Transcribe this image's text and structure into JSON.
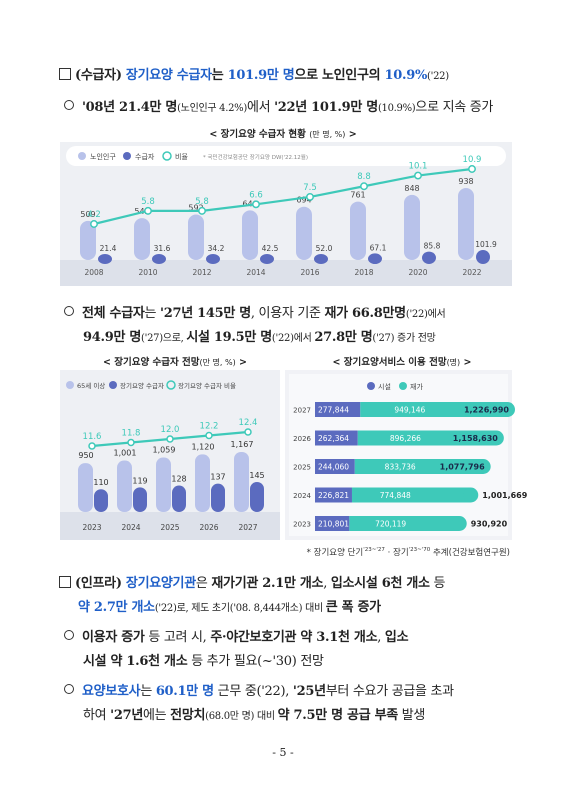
{
  "s1": {
    "a": "(수급자) ",
    "b": "장기요양 수급자",
    "c": "는 ",
    "d": "101.9만 명",
    "e": "으로 ",
    "f": "노인인구",
    "g": "의 ",
    "h": "10.9%",
    "i": "('22)"
  },
  "s1b": {
    "a": "'08년 21.4만 명",
    "b": "(노인인구 4.2%)",
    "c": "에서 ",
    "d": "'22년 101.9만 명",
    "e": "(10.9%)",
    "f": "으로 지속 증가"
  },
  "cap1": {
    "main": "< 장기요양 수급자 현황 ",
    "unit": "(만 명, %)",
    "end": " >"
  },
  "chart1": {
    "legend": [
      "노인인구",
      "수급자",
      "비율"
    ],
    "note": "* 국민건강보험공단 장기요양 DW('22.12월)",
    "colors": {
      "pop": "#b8c2ea",
      "rec": "#5b6bbf",
      "ratio": "#3ec9b9"
    }
  },
  "s2": {
    "l1a": "전체 수급자",
    "l1b": "는 ",
    "l1c": "'27년 145만 명",
    "l1d": ", 이용자 기준 ",
    "l1e": "재가 66.8만명",
    "l1f": "('22)에서",
    "l2a": "94.9만 명",
    "l2b": "('27)으로, ",
    "l2c": "시설 19.5만 명",
    "l2d": "('22)에서 ",
    "l2e": "27.8만 명",
    "l2f": "('27) 증가 전망"
  },
  "cap2": {
    "main": "< 장기요양 수급자 전망",
    "unit": "(만 명, %)",
    "end": " >"
  },
  "cap3": {
    "main": "< 장기요양서비스 이용 전망",
    "unit": "(명)",
    "end": " >"
  },
  "chart2": {
    "legend": [
      "65세 이상",
      "장기요양 수급자",
      "장기요양 수급자 비율"
    ]
  },
  "chart3": {
    "legend": [
      "시설",
      "재가"
    ]
  },
  "chart_data": [
    {
      "type": "bar",
      "title": "장기요양 수급자 현황",
      "categories": [
        "2008",
        "2010",
        "2012",
        "2014",
        "2016",
        "2018",
        "2020",
        "2022"
      ],
      "series": [
        {
          "name": "노인인구",
          "values": [
            509,
            545,
            592,
            646,
            694,
            761,
            848,
            938
          ]
        },
        {
          "name": "수급자",
          "values": [
            21.4,
            31.6,
            34.2,
            42.5,
            52.0,
            67.1,
            85.8,
            101.9
          ]
        },
        {
          "name": "비율",
          "type": "line",
          "values": [
            4.2,
            5.8,
            5.8,
            6.6,
            7.5,
            8.8,
            10.1,
            10.9
          ]
        }
      ]
    },
    {
      "type": "bar",
      "title": "장기요양 수급자 전망",
      "categories": [
        "2023",
        "2024",
        "2025",
        "2026",
        "2027"
      ],
      "series": [
        {
          "name": "65세 이상",
          "values": [
            950,
            1001,
            1059,
            1120,
            1167
          ]
        },
        {
          "name": "장기요양 수급자",
          "values": [
            110,
            119,
            128,
            137,
            145
          ]
        },
        {
          "name": "장기요양 수급자 비율",
          "type": "line",
          "values": [
            11.6,
            11.8,
            12.0,
            12.2,
            12.4
          ]
        }
      ]
    },
    {
      "type": "bar",
      "orientation": "horizontal",
      "stacked": true,
      "title": "장기요양서비스 이용 전망",
      "categories": [
        "2027",
        "2026",
        "2025",
        "2024",
        "2023"
      ],
      "series": [
        {
          "name": "시설",
          "values": [
            277844,
            262364,
            244060,
            226821,
            210801
          ]
        },
        {
          "name": "재가",
          "values": [
            949146,
            896266,
            833736,
            774848,
            720119
          ]
        }
      ],
      "totals": [
        1226990,
        1158630,
        1077796,
        1001669,
        930920
      ]
    }
  ],
  "source": {
    "a": "* 장기요양 단기",
    "sup1": "'23~'27",
    "b": " · 장기",
    "sup2": "'23~'70",
    "c": " 추계(건강보험연구원)"
  },
  "s3": {
    "a": "(인프라) ",
    "b": "장기요양기관",
    "c": "은 ",
    "d": "재가기관 2.1만 개소",
    "e": ", ",
    "f": "입소시설 6천 개소",
    "g": " 등",
    "l2a": "약 2.7만 개소",
    "l2b": "('22)로, 제도 초기('08. 8,444개소) 대비 ",
    "l2c": "큰 폭 증가"
  },
  "s3b": {
    "l1a": "이용자 증가",
    "l1b": " 등 고려 시, ",
    "l1c": "주·야간보호기관 약 3.1천 개소",
    "l1d": ", ",
    "l1e": "입소",
    "l2a": "시설 약 1.6천 개소",
    "l2b": " 등 추가 필요(~'30) 전망"
  },
  "s3c": {
    "l1a": "요양보호사",
    "l1b": "는 ",
    "l1c": "60.1만 명",
    "l1d": " 근무 중('22), ",
    "l1e": "'25년",
    "l1f": "부터 수요가 공급을 초과",
    "l2a": "하여 ",
    "l2b": "'27년",
    "l2c": "에는 ",
    "l2d": "전망치",
    "l2e": "(68.0만 명) 대비 ",
    "l2f": "약 7.5만 명 공급 부족",
    "l2g": " 발생"
  },
  "page_number": "- 5 -"
}
